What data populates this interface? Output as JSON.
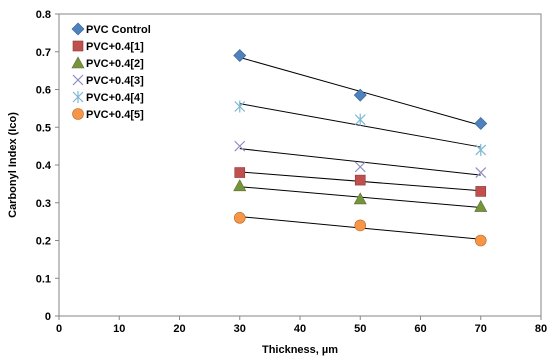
{
  "chart_data": {
    "type": "scatter",
    "xlabel": "Thickness, µm",
    "ylabel": "Carbonyl Index (Ico)",
    "xlim": [
      0,
      80
    ],
    "ylim": [
      0,
      0.8
    ],
    "xticks": [
      "0",
      "10",
      "20",
      "30",
      "40",
      "50",
      "60",
      "70",
      "80"
    ],
    "yticks": [
      "0",
      "0.1",
      "0.2",
      "0.3",
      "0.4",
      "0.5",
      "0.6",
      "0.7",
      "0.8"
    ],
    "grid": false,
    "legend_position": "top-left",
    "trendlines": true,
    "series": [
      {
        "name": "PVC Control",
        "marker": "diamond",
        "color": "#4F81BD",
        "x": [
          30,
          50,
          70
        ],
        "y": [
          0.69,
          0.585,
          0.51
        ]
      },
      {
        "name": "PVC+0.4[1]",
        "marker": "square",
        "color": "#C0504D",
        "x": [
          30,
          50,
          70
        ],
        "y": [
          0.38,
          0.36,
          0.33
        ]
      },
      {
        "name": "PVC+0.4[2]",
        "marker": "triangle",
        "color": "#77933C",
        "x": [
          30,
          50,
          70
        ],
        "y": [
          0.345,
          0.31,
          0.29
        ]
      },
      {
        "name": "PVC+0.4[3]",
        "marker": "x",
        "color": "#8E8CC4",
        "x": [
          30,
          50,
          70
        ],
        "y": [
          0.45,
          0.395,
          0.38
        ]
      },
      {
        "name": "PVC+0.4[4]",
        "marker": "star",
        "color": "#7FB8D4",
        "x": [
          30,
          50,
          70
        ],
        "y": [
          0.555,
          0.52,
          0.44
        ]
      },
      {
        "name": "PVC+0.4[5]",
        "marker": "circle",
        "color": "#F79646",
        "x": [
          30,
          50,
          70
        ],
        "y": [
          0.26,
          0.24,
          0.2
        ]
      }
    ]
  }
}
